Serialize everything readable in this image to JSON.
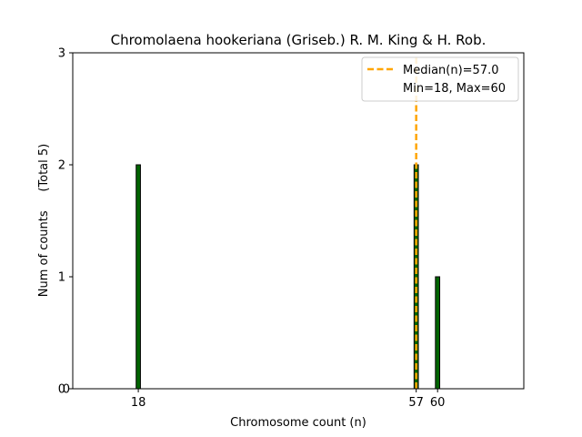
{
  "chart_data": {
    "type": "bar",
    "title": "Chromolaena hookeriana (Griseb.) R. M. King & H. Rob.",
    "xlabel": "Chromosome count (n)",
    "ylabel": "Num of counts     (Total 5)",
    "ylim": [
      0,
      3
    ],
    "yticks": [
      "0",
      "1",
      "2",
      "3"
    ],
    "xticks": [
      "18",
      "57",
      "60"
    ],
    "bars": [
      {
        "x": 18,
        "count": 2
      },
      {
        "x": 57,
        "count": 2
      },
      {
        "x": 60,
        "count": 1
      }
    ],
    "median": 57.0,
    "legend": {
      "placement": "top-right",
      "entries": [
        "Median(n)=57.0",
        "Min=18, Max=60"
      ]
    },
    "colors": {
      "bar_fill": "#006400",
      "bar_edge": "#000000",
      "median_line": "#FFA500"
    },
    "grid": false
  }
}
